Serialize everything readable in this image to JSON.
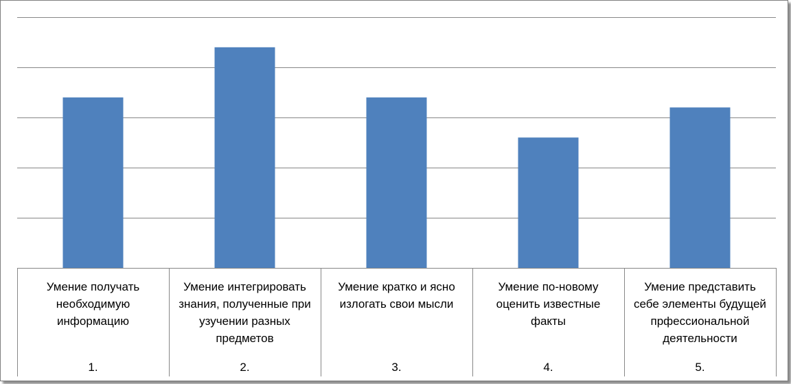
{
  "chart_data": {
    "type": "bar",
    "categories": [
      {
        "number": "1.",
        "lines": [
          "Умение получать",
          "необходимую",
          "информацию"
        ]
      },
      {
        "number": "2.",
        "lines": [
          "Умение интегрировать",
          "знания, полученные при",
          "узучении разных",
          "предметов"
        ]
      },
      {
        "number": "3.",
        "lines": [
          "Умение кратко и ясно",
          "излогать свои мысли"
        ]
      },
      {
        "number": "4.",
        "lines": [
          "Умение по-новому",
          "оценить известные",
          "факты"
        ]
      },
      {
        "number": "5.",
        "lines": [
          "Умение представить",
          "себе элементы будущей",
          "прфессиональной",
          "деятельности"
        ]
      }
    ],
    "values": [
      34,
      44,
      34,
      26,
      32
    ],
    "ylim": [
      0,
      50
    ],
    "gridlines": [
      10,
      20,
      30,
      40,
      50
    ],
    "grid": true,
    "legend": "none",
    "bar_color": "#4f81bd",
    "gridline_color": "#868686"
  }
}
